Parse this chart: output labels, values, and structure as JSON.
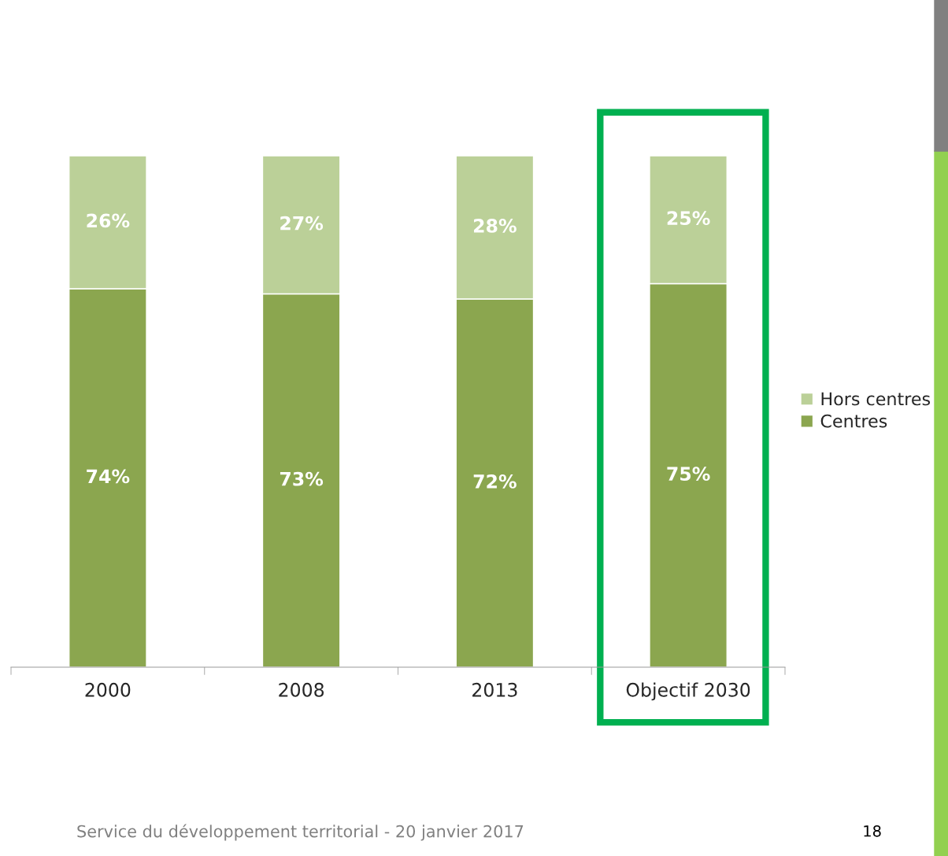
{
  "chart_data": {
    "type": "bar",
    "stacked": true,
    "categories": [
      "2000",
      "2008",
      "2013",
      "Objectif 2030"
    ],
    "series": [
      {
        "name": "Centres",
        "color": "#8ba64f",
        "values": [
          74,
          73,
          72,
          75
        ],
        "value_labels": [
          "74%",
          "73%",
          "72%",
          "75%"
        ]
      },
      {
        "name": "Hors centres",
        "color": "#bbd098",
        "values": [
          26,
          27,
          28,
          25
        ],
        "value_labels": [
          "26%",
          "27%",
          "28%",
          "25%"
        ]
      }
    ],
    "legend": "right",
    "annotations": [
      "Service du développement territorial - 20 janvier 2017",
      "18"
    ]
  }
}
